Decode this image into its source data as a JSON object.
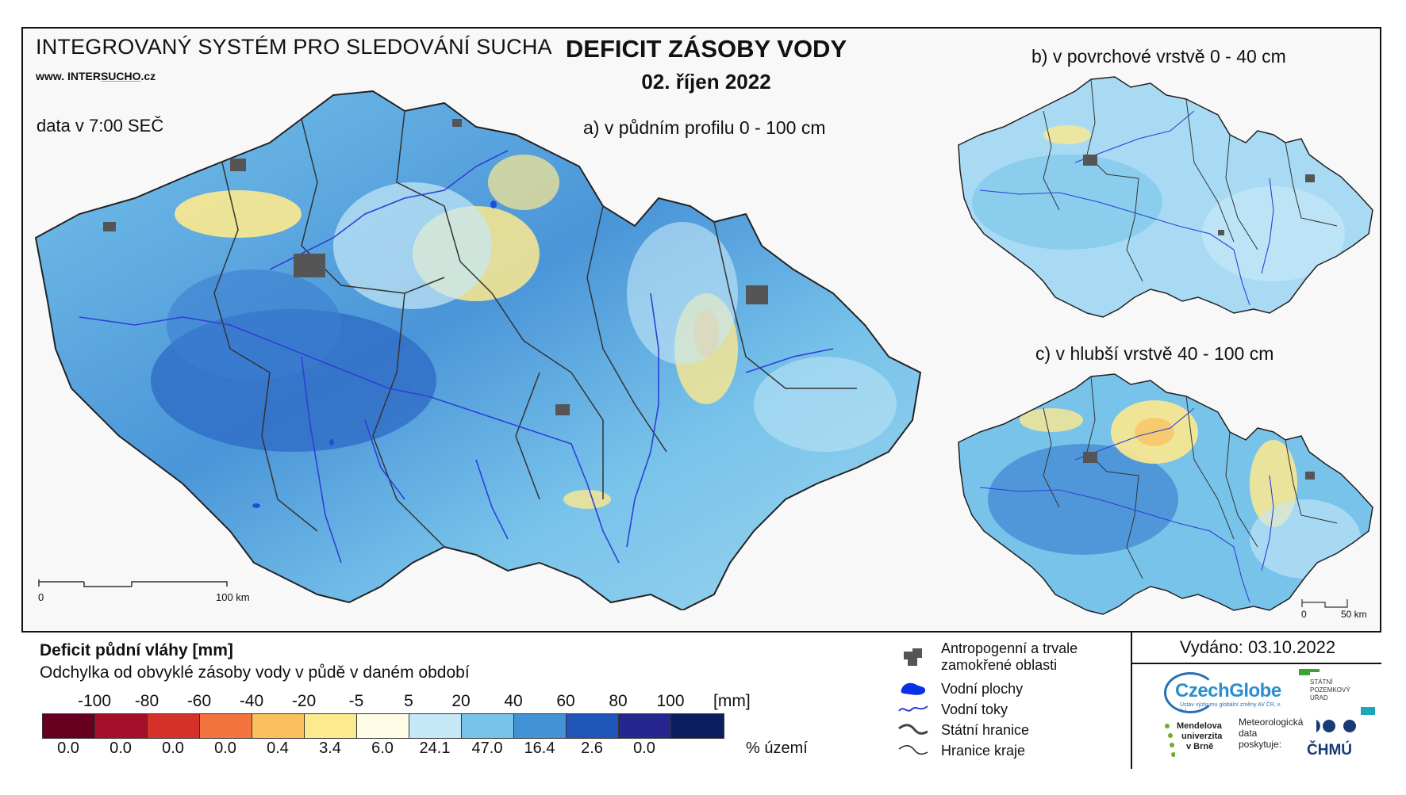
{
  "header": {
    "system_title": "INTEGROVANÝ SYSTÉM PRO SLEDOVÁNÍ SUCHA",
    "website_prefix": "www.",
    "website_inter": "INTER",
    "website_sucho": "SUCHO",
    "website_suffix": ".cz",
    "data_time": "data v 7:00 SEČ",
    "map_title": "DEFICIT ZÁSOBY VODY",
    "map_date": "02. říjen 2022"
  },
  "maps": {
    "main_label": "a) v půdním profilu 0 - 100 cm",
    "surface_label": "b) v povrchové vrstvě 0 - 40 cm",
    "deep_label": "c) v hlubší vrstvě 40 - 100 cm",
    "main_scale": {
      "start": "0",
      "end": "100 km"
    },
    "small_scale": {
      "start": "0",
      "end": "50 km"
    }
  },
  "legend": {
    "title": "Deficit půdní vláhy  [mm]",
    "subtitle": "Odchylka od obvyklé zásoby vody v půdě v daném období",
    "unit": "[mm]",
    "percent_unit": "% území",
    "breaks": [
      "-100",
      "-80",
      "-60",
      "-40",
      "-20",
      "-5",
      "5",
      "20",
      "40",
      "60",
      "80",
      "100"
    ],
    "classes": [
      {
        "color": "#67001f",
        "percent": "0.0"
      },
      {
        "color": "#a50f2a",
        "percent": "0.0"
      },
      {
        "color": "#d6302b",
        "percent": "0.0"
      },
      {
        "color": "#f4743f",
        "percent": "0.0"
      },
      {
        "color": "#fbbf5e",
        "percent": "0.4"
      },
      {
        "color": "#fde98e",
        "percent": "3.4"
      },
      {
        "color": "#fffde6",
        "percent": "6.0"
      },
      {
        "color": "#c6e8f6",
        "percent": "24.1"
      },
      {
        "color": "#78c3ea",
        "percent": "47.0"
      },
      {
        "color": "#4292d5",
        "percent": "16.4"
      },
      {
        "color": "#1f55b8",
        "percent": "2.6"
      },
      {
        "color": "#26268f",
        "percent": "0.0"
      },
      {
        "color": "#0b1f5e",
        "percent": ""
      }
    ]
  },
  "symbols": {
    "urban": "Antropogenní a trvale zamokřené oblasti",
    "water_bodies": "Vodní plochy",
    "streams": "Vodní toky",
    "state_border": "Státní hranice",
    "region_border": "Hranice kraje"
  },
  "footer": {
    "issued": "Vydáno: 03.10.2022",
    "czechglobe": "CzechGlobe",
    "czechglobe_sub": "Ústav výzkumu globální změny AV ČR, v. v. i.",
    "spu_line1": "STÁTNÍ",
    "spu_line2": "POZEMKOVÝ",
    "spu_line3": "ÚŘAD",
    "mendel_line1": "Mendelova",
    "mendel_line2": "univerzita",
    "mendel_line3": "v Brně",
    "meteo_line1": "Meteorologická",
    "meteo_line2": "data",
    "meteo_line3": "poskytuje:",
    "chmu": "ČHMÚ"
  },
  "colors": {
    "river": "#2f3fd6",
    "urban": "#555555",
    "border": "#222222"
  }
}
